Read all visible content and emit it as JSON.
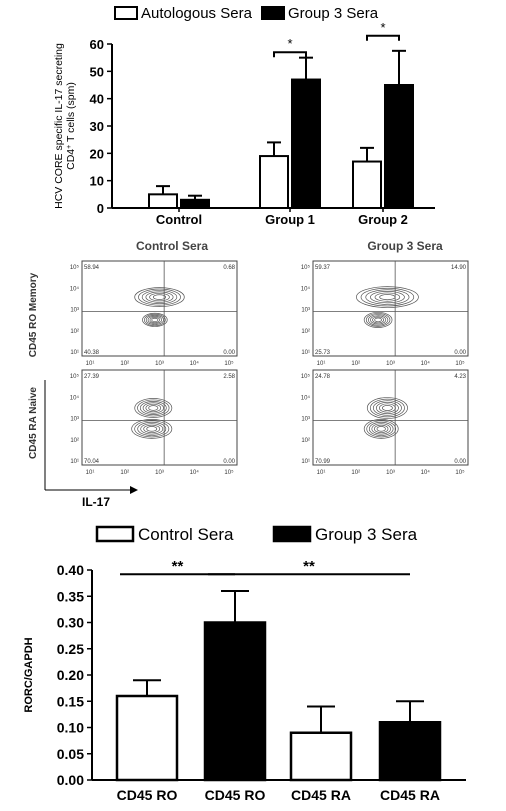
{
  "chart_data": [
    {
      "type": "bar",
      "legend": [
        "Autologous Sera",
        "Group 3 Sera"
      ],
      "legend_position": "top",
      "ylabel": [
        "HCV CORE specific IL-17 secreting",
        "CD4+ T cells (spm)"
      ],
      "ylim": [
        0,
        60
      ],
      "yticks": [
        "0",
        "10",
        "20",
        "30",
        "40",
        "50",
        "60"
      ],
      "categories": [
        "Control",
        "Group 1",
        "Group 2"
      ],
      "series": [
        {
          "name": "Autologous Sera",
          "values": [
            5,
            19,
            17
          ],
          "errors": [
            3,
            5,
            5
          ],
          "fill": "#ffffff"
        },
        {
          "name": "Group 3 Sera",
          "values": [
            3,
            47,
            45
          ],
          "errors": [
            1.5,
            8,
            12.5
          ],
          "fill": "#000000"
        }
      ],
      "significance": [
        {
          "group": "Group 1",
          "label": "*",
          "y": 57
        },
        {
          "group": "Group 2",
          "label": "*",
          "y": 63
        }
      ]
    },
    {
      "type": "scatter",
      "column_titles": [
        "Control Sera",
        "Group 3 Sera"
      ],
      "row_titles": [
        "CD45 RO Memory",
        "CD45 RA Naive"
      ],
      "xlabel": "IL-17",
      "tick_labels": [
        "10¹",
        "10²",
        "10³",
        "10⁴",
        "10⁵"
      ],
      "panels": [
        {
          "row": 0,
          "col": 0,
          "quadrants": {
            "ul": "58.94",
            "ur": "0.68",
            "ll": "40.38",
            "lr": "0.00"
          }
        },
        {
          "row": 0,
          "col": 1,
          "quadrants": {
            "ul": "59.37",
            "ur": "14.90",
            "ll": "25.73",
            "lr": "0.00"
          }
        },
        {
          "row": 1,
          "col": 0,
          "quadrants": {
            "ul": "27.39",
            "ur": "2.58",
            "ll": "70.04",
            "lr": "0.00"
          }
        },
        {
          "row": 1,
          "col": 1,
          "quadrants": {
            "ul": "24.78",
            "ur": "4.23",
            "ll": "70.99",
            "lr": "0.00"
          }
        }
      ]
    },
    {
      "type": "bar",
      "legend": [
        "Control Sera",
        "Group 3 Sera"
      ],
      "legend_position": "top",
      "ylabel": "RORC/GAPDH",
      "ylim": [
        0,
        0.4
      ],
      "yticks": [
        "0.00",
        "0.05",
        "0.10",
        "0.15",
        "0.20",
        "0.25",
        "0.30",
        "0.35",
        "0.40"
      ],
      "categories": [
        "CD45 RO",
        "CD45 RO",
        "CD45 RA",
        "CD45 RA"
      ],
      "values": [
        0.16,
        0.3,
        0.09,
        0.11
      ],
      "errors": [
        0.03,
        0.06,
        0.05,
        0.04
      ],
      "fills": [
        "#ffffff",
        "#000000",
        "#ffffff",
        "#000000"
      ],
      "significance": [
        {
          "from": 0,
          "to": 1,
          "label": "**",
          "y": 0.392
        },
        {
          "from": 1,
          "to": 3,
          "label": "**",
          "y": 0.392
        }
      ]
    }
  ]
}
